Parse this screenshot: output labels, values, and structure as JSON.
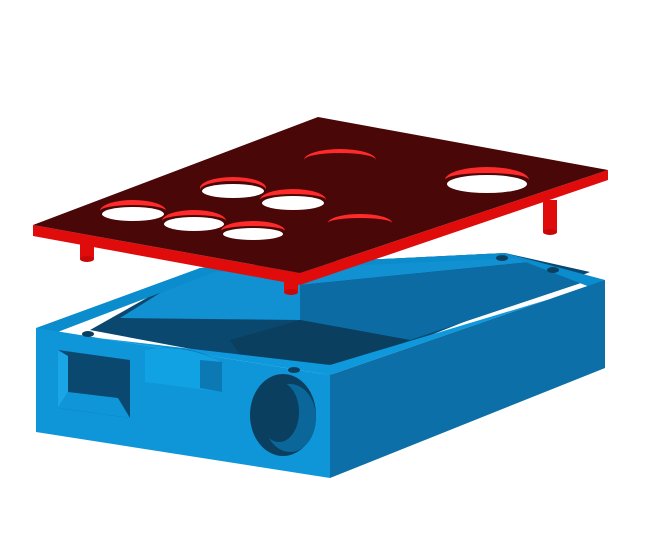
{
  "scene": {
    "kind": "exploded 3D model render of an enclosure",
    "background": "#ffffff",
    "lid": {
      "top_color": "#4a0707",
      "edge_color": "#e00c0c",
      "hole_inner_color": "#ff2a2a",
      "hole_count": 8,
      "pin_count": 4
    },
    "box": {
      "top_color": "#1090d0",
      "front_color": "#0f96d8",
      "side_color": "#0c6fa8",
      "inner_color": "#0a3f60",
      "features": [
        "rectangular-port",
        "round-port",
        "shelf-tab",
        "screw-holes"
      ]
    }
  }
}
